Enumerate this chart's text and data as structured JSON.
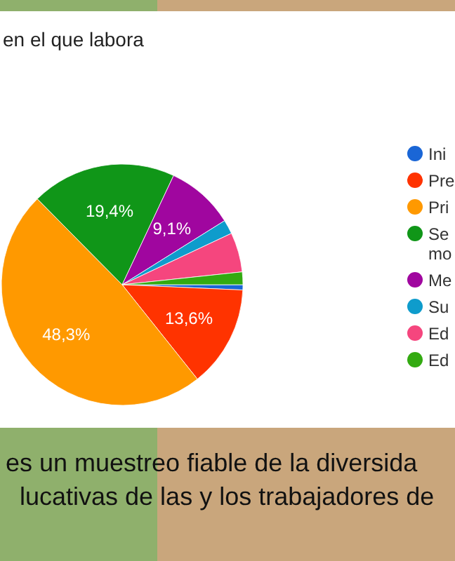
{
  "chart_data": {
    "type": "pie",
    "title": "en el que labora",
    "categories": [
      "Ini",
      "Pre",
      "Pri",
      "Se mo",
      "Me",
      "Su",
      "Ed",
      "Ed"
    ],
    "values": [
      0.7,
      13.6,
      48.3,
      19.4,
      9.1,
      1.9,
      5.3,
      1.7
    ],
    "colors": [
      "#1a66d6",
      "#ff3300",
      "#ff9900",
      "#109618",
      "#a0069f",
      "#0e9ccc",
      "#f5467e",
      "#33aa11"
    ],
    "value_labels": [
      null,
      "13,6%",
      "48,3%",
      "19,4%",
      "9,1%",
      null,
      null,
      null
    ],
    "legend": "right",
    "annotations": [
      "es un muestreo fiable de la diversida",
      "lucativas de las y los trabajadores de"
    ]
  }
}
